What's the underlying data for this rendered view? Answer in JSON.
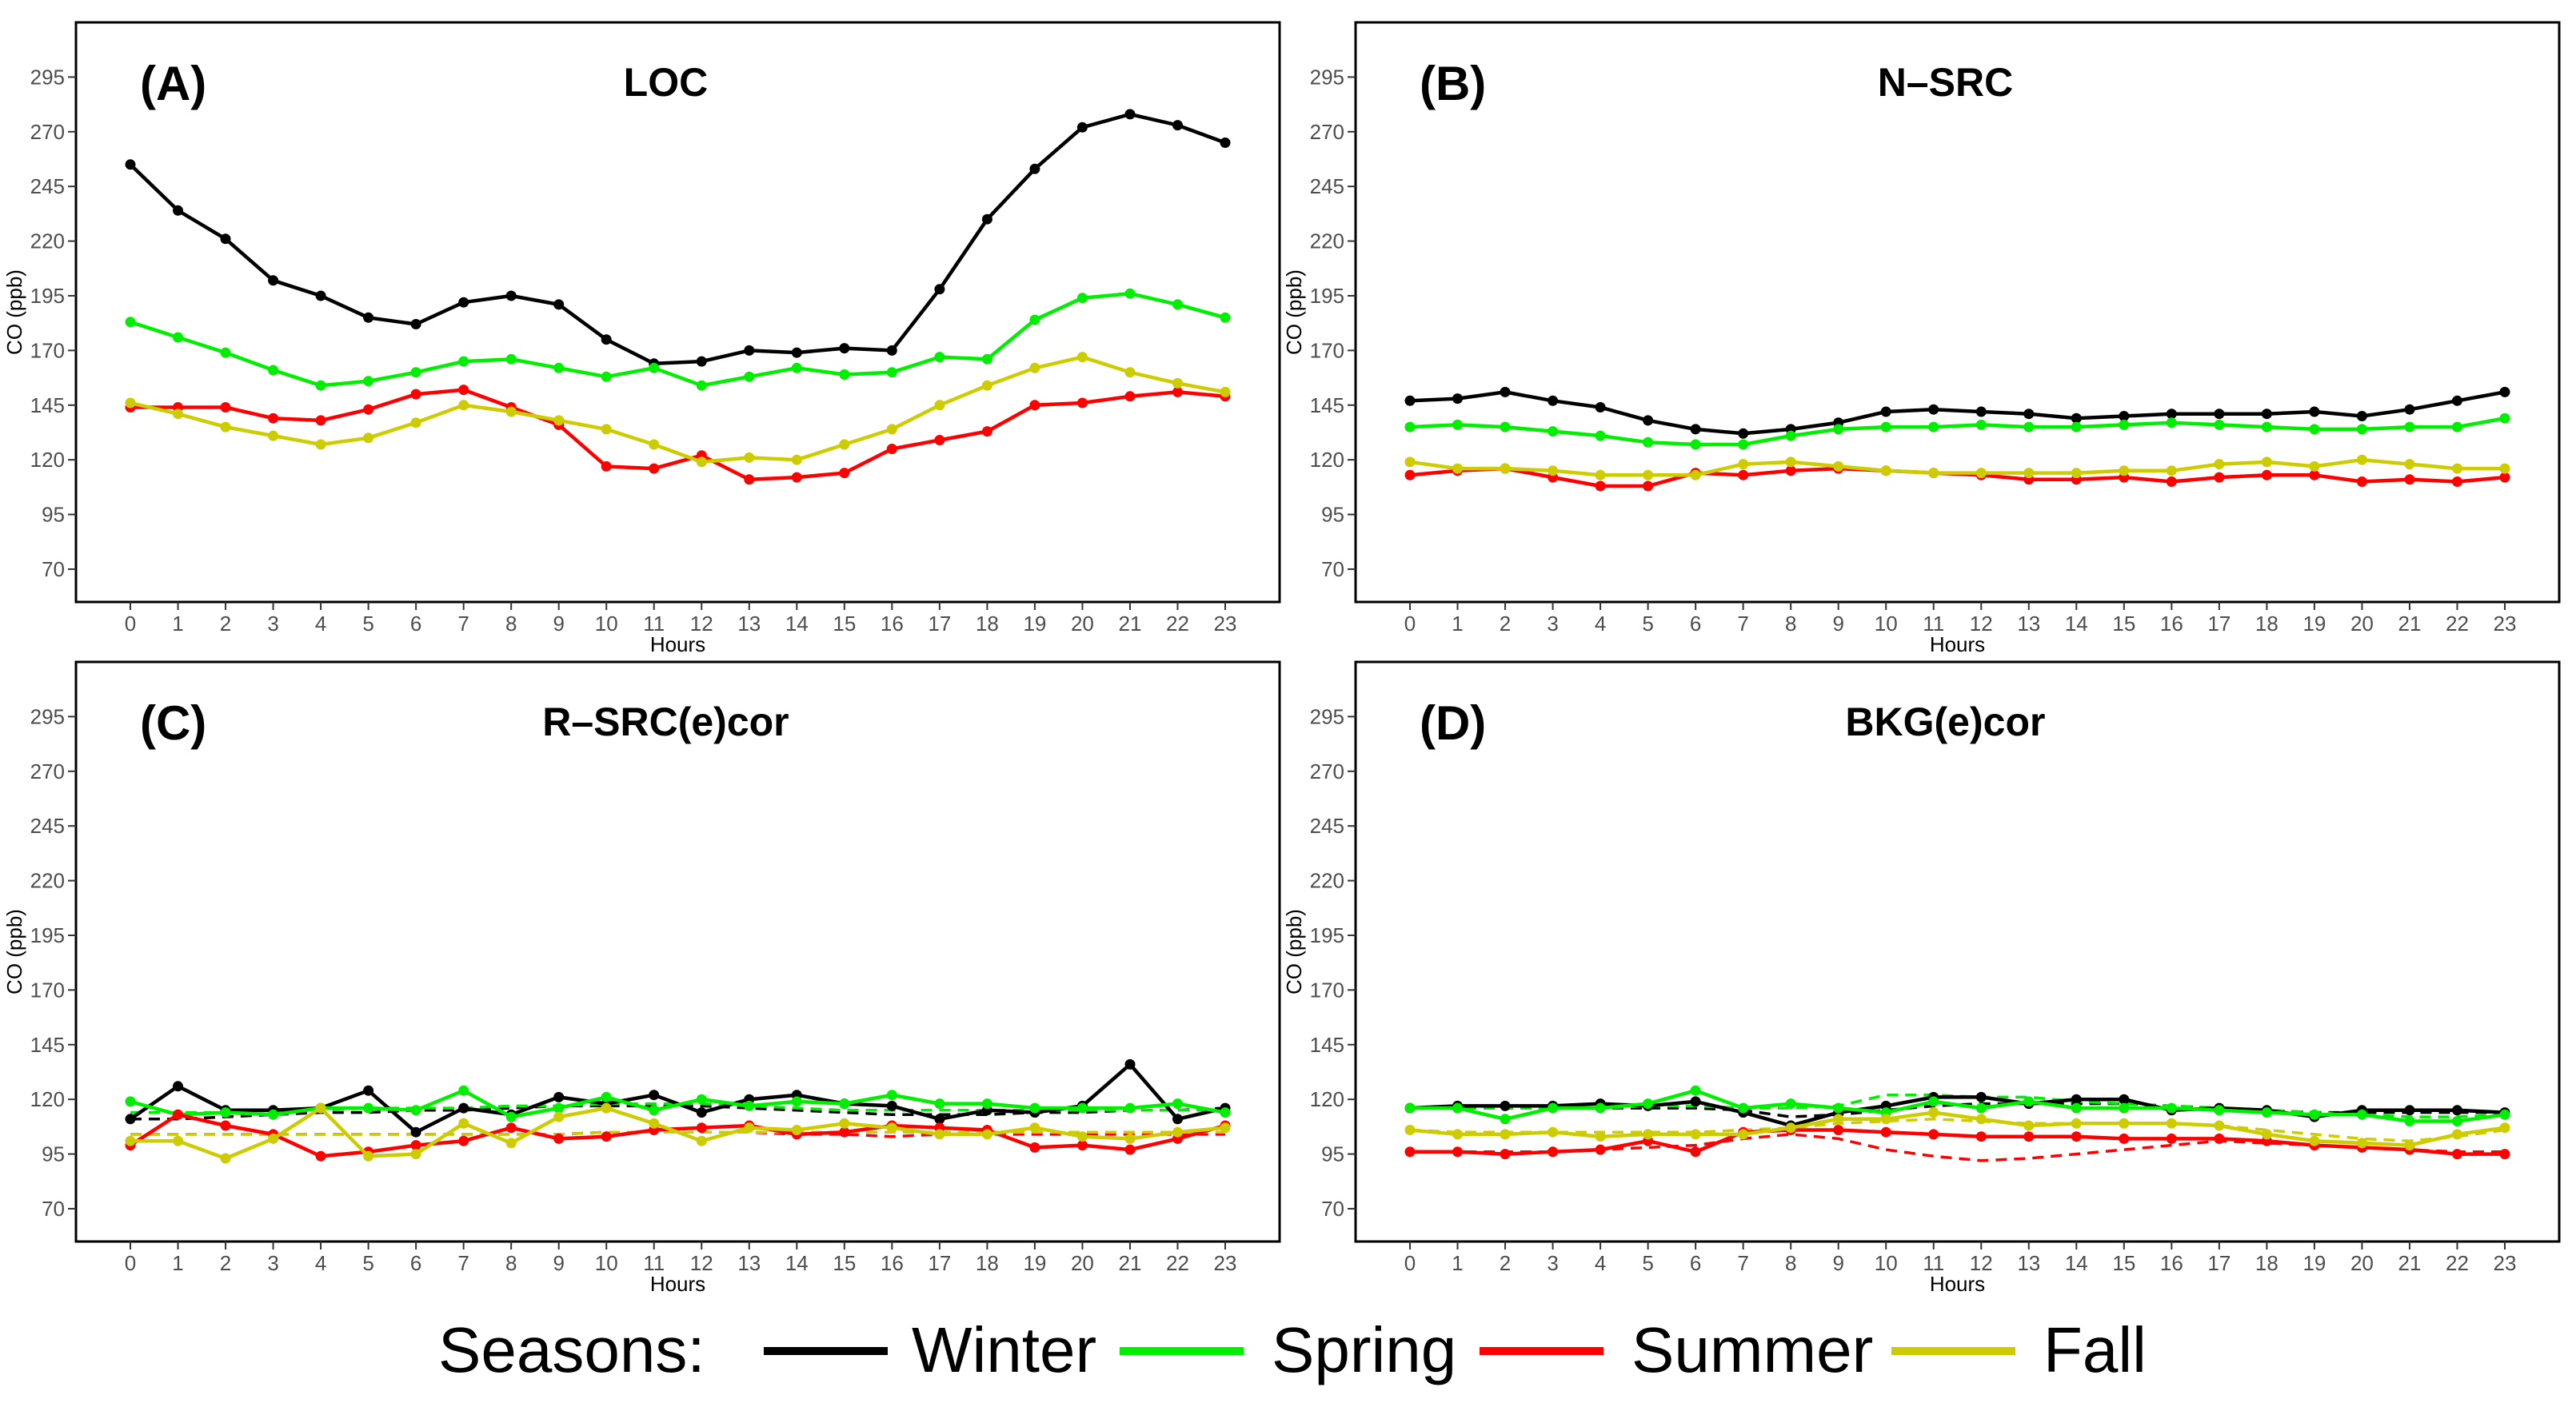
{
  "legend": {
    "title": "Seasons:",
    "items": [
      {
        "label": "Winter",
        "color": "#000000"
      },
      {
        "label": "Spring",
        "color": "#00ee00"
      },
      {
        "label": "Summer",
        "color": "#ff0000"
      },
      {
        "label": "Fall",
        "color": "#cccc00"
      }
    ]
  },
  "chart_data": [
    {
      "type": "line",
      "tag": "(A)",
      "title": "LOC",
      "xlabel": "Hours",
      "ylabel": "CO (ppb)",
      "x": [
        0,
        1,
        2,
        3,
        4,
        5,
        6,
        7,
        8,
        9,
        10,
        11,
        12,
        13,
        14,
        15,
        16,
        17,
        18,
        19,
        20,
        21,
        22,
        23
      ],
      "yticks": [
        70,
        95,
        120,
        145,
        170,
        195,
        220,
        245,
        270,
        295
      ],
      "ylim": [
        55,
        320
      ],
      "series": [
        {
          "name": "Winter",
          "color": "#000000",
          "values": [
            255,
            234,
            221,
            202,
            195,
            185,
            182,
            192,
            195,
            191,
            175,
            164,
            165,
            170,
            169,
            171,
            170,
            198,
            230,
            253,
            272,
            278,
            273,
            265
          ]
        },
        {
          "name": "Spring",
          "color": "#00ee00",
          "values": [
            183,
            176,
            169,
            161,
            154,
            156,
            160,
            165,
            166,
            162,
            158,
            162,
            154,
            158,
            162,
            159,
            160,
            167,
            166,
            184,
            194,
            196,
            191,
            185
          ]
        },
        {
          "name": "Summer",
          "color": "#ff0000",
          "values": [
            144,
            144,
            144,
            139,
            138,
            143,
            150,
            152,
            144,
            136,
            117,
            116,
            122,
            111,
            112,
            114,
            125,
            129,
            133,
            145,
            146,
            149,
            151,
            149
          ]
        },
        {
          "name": "Fall",
          "color": "#cccc00",
          "values": [
            146,
            141,
            135,
            131,
            127,
            130,
            137,
            145,
            142,
            138,
            134,
            127,
            119,
            121,
            120,
            127,
            134,
            145,
            154,
            162,
            167,
            160,
            155,
            151
          ]
        }
      ],
      "dashed_series": []
    },
    {
      "type": "line",
      "tag": "(B)",
      "title": "N–SRC",
      "xlabel": "Hours",
      "ylabel": "CO (ppb)",
      "x": [
        0,
        1,
        2,
        3,
        4,
        5,
        6,
        7,
        8,
        9,
        10,
        11,
        12,
        13,
        14,
        15,
        16,
        17,
        18,
        19,
        20,
        21,
        22,
        23
      ],
      "yticks": [
        70,
        95,
        120,
        145,
        170,
        195,
        220,
        245,
        270,
        295
      ],
      "ylim": [
        55,
        320
      ],
      "series": [
        {
          "name": "Winter",
          "color": "#000000",
          "values": [
            147,
            148,
            151,
            147,
            144,
            138,
            134,
            132,
            134,
            137,
            142,
            143,
            142,
            141,
            139,
            140,
            141,
            141,
            141,
            142,
            140,
            143,
            147,
            151
          ]
        },
        {
          "name": "Spring",
          "color": "#00ee00",
          "values": [
            135,
            136,
            135,
            133,
            131,
            128,
            127,
            127,
            131,
            134,
            135,
            135,
            136,
            135,
            135,
            136,
            137,
            136,
            135,
            134,
            134,
            135,
            135,
            139
          ]
        },
        {
          "name": "Summer",
          "color": "#ff0000",
          "values": [
            113,
            115,
            116,
            112,
            108,
            108,
            114,
            113,
            115,
            116,
            115,
            114,
            113,
            111,
            111,
            112,
            110,
            112,
            113,
            113,
            110,
            111,
            110,
            112
          ]
        },
        {
          "name": "Fall",
          "color": "#cccc00",
          "values": [
            119,
            116,
            116,
            115,
            113,
            113,
            113,
            118,
            119,
            117,
            115,
            114,
            114,
            114,
            114,
            115,
            115,
            118,
            119,
            117,
            120,
            118,
            116,
            116
          ]
        }
      ],
      "dashed_series": []
    },
    {
      "type": "line",
      "tag": "(C)",
      "title": "R–SRC(e)cor",
      "xlabel": "Hours",
      "ylabel": "CO (ppb)",
      "x": [
        0,
        1,
        2,
        3,
        4,
        5,
        6,
        7,
        8,
        9,
        10,
        11,
        12,
        13,
        14,
        15,
        16,
        17,
        18,
        19,
        20,
        21,
        22,
        23
      ],
      "yticks": [
        70,
        95,
        120,
        145,
        170,
        195,
        220,
        245,
        270,
        295
      ],
      "ylim": [
        55,
        320
      ],
      "series": [
        {
          "name": "Winter",
          "color": "#000000",
          "values": [
            111,
            126,
            115,
            115,
            116,
            124,
            105,
            116,
            113,
            121,
            118,
            122,
            114,
            120,
            122,
            118,
            117,
            111,
            115,
            114,
            117,
            136,
            111,
            116
          ]
        },
        {
          "name": "Spring",
          "color": "#00ee00",
          "values": [
            119,
            113,
            114,
            113,
            116,
            116,
            115,
            124,
            112,
            116,
            121,
            115,
            120,
            117,
            119,
            118,
            122,
            118,
            118,
            116,
            116,
            116,
            118,
            114
          ]
        },
        {
          "name": "Summer",
          "color": "#ff0000",
          "values": [
            99,
            113,
            108,
            104,
            94,
            96,
            99,
            101,
            107,
            102,
            103,
            106,
            107,
            108,
            104,
            105,
            108,
            107,
            106,
            98,
            99,
            97,
            102,
            108
          ]
        },
        {
          "name": "Fall",
          "color": "#cccc00",
          "values": [
            101,
            101,
            93,
            102,
            116,
            94,
            95,
            109,
            100,
            112,
            116,
            109,
            101,
            107,
            106,
            109,
            107,
            104,
            104,
            107,
            103,
            102,
            105,
            107
          ]
        }
      ],
      "dashed_series": [
        {
          "name": "Winter",
          "color": "#000000",
          "values": [
            111,
            111,
            112,
            113,
            114,
            114,
            115,
            115,
            116,
            117,
            117,
            117,
            117,
            116,
            115,
            114,
            113,
            113,
            113,
            114,
            114,
            115,
            115,
            116
          ]
        },
        {
          "name": "Spring",
          "color": "#00ee00",
          "values": [
            114,
            114,
            114,
            115,
            115,
            116,
            116,
            116,
            117,
            117,
            118,
            118,
            118,
            117,
            116,
            115,
            115,
            115,
            115,
            115,
            115,
            115,
            115,
            115
          ]
        },
        {
          "name": "Summer",
          "color": "#ff0000",
          "values": [
            104,
            104,
            104,
            104,
            104,
            104,
            104,
            104,
            104,
            104,
            105,
            105,
            105,
            105,
            104,
            104,
            103,
            104,
            104,
            104,
            104,
            104,
            104,
            104
          ]
        },
        {
          "name": "Fall",
          "color": "#cccc00",
          "values": [
            104,
            104,
            104,
            104,
            104,
            104,
            104,
            104,
            104,
            104,
            105,
            105,
            105,
            105,
            105,
            105,
            105,
            105,
            105,
            105,
            105,
            105,
            105,
            105
          ]
        }
      ]
    },
    {
      "type": "line",
      "tag": "(D)",
      "title": "BKG(e)cor",
      "xlabel": "Hours",
      "ylabel": "CO (ppb)",
      "x": [
        0,
        1,
        2,
        3,
        4,
        5,
        6,
        7,
        8,
        9,
        10,
        11,
        12,
        13,
        14,
        15,
        16,
        17,
        18,
        19,
        20,
        21,
        22,
        23
      ],
      "yticks": [
        70,
        95,
        120,
        145,
        170,
        195,
        220,
        245,
        270,
        295
      ],
      "ylim": [
        55,
        320
      ],
      "series": [
        {
          "name": "Winter",
          "color": "#000000",
          "values": [
            116,
            117,
            117,
            117,
            118,
            117,
            119,
            114,
            108,
            114,
            117,
            121,
            121,
            118,
            120,
            120,
            115,
            116,
            115,
            112,
            115,
            115,
            115,
            114
          ]
        },
        {
          "name": "Spring",
          "color": "#00ee00",
          "values": [
            116,
            116,
            111,
            116,
            116,
            118,
            124,
            116,
            118,
            116,
            114,
            119,
            116,
            119,
            116,
            116,
            116,
            115,
            114,
            113,
            113,
            110,
            110,
            113
          ]
        },
        {
          "name": "Summer",
          "color": "#ff0000",
          "values": [
            96,
            96,
            95,
            96,
            97,
            101,
            96,
            105,
            106,
            106,
            105,
            104,
            103,
            103,
            103,
            102,
            102,
            102,
            101,
            99,
            98,
            97,
            95,
            95
          ]
        },
        {
          "name": "Fall",
          "color": "#cccc00",
          "values": [
            106,
            104,
            104,
            105,
            103,
            104,
            104,
            104,
            107,
            111,
            111,
            114,
            111,
            108,
            109,
            109,
            109,
            108,
            104,
            101,
            100,
            99,
            104,
            107
          ]
        }
      ],
      "dashed_series": [
        {
          "name": "Winter",
          "color": "#000000",
          "values": [
            116,
            116,
            116,
            116,
            116,
            116,
            116,
            115,
            112,
            113,
            115,
            117,
            118,
            118,
            118,
            118,
            117,
            116,
            115,
            114,
            114,
            114,
            114,
            114
          ]
        },
        {
          "name": "Spring",
          "color": "#00ee00",
          "values": [
            116,
            116,
            116,
            116,
            116,
            117,
            117,
            116,
            116,
            117,
            122,
            122,
            121,
            121,
            119,
            118,
            117,
            116,
            115,
            114,
            113,
            112,
            112,
            113
          ]
        },
        {
          "name": "Summer",
          "color": "#ff0000",
          "values": [
            96,
            96,
            96,
            96,
            97,
            98,
            99,
            102,
            104,
            102,
            97,
            94,
            92,
            93,
            95,
            97,
            99,
            101,
            100,
            99,
            98,
            97,
            96,
            96
          ]
        },
        {
          "name": "Fall",
          "color": "#cccc00",
          "values": [
            106,
            105,
            105,
            105,
            105,
            105,
            105,
            106,
            107,
            109,
            110,
            111,
            110,
            109,
            109,
            109,
            109,
            108,
            106,
            104,
            102,
            101,
            103,
            106
          ]
        }
      ]
    }
  ]
}
